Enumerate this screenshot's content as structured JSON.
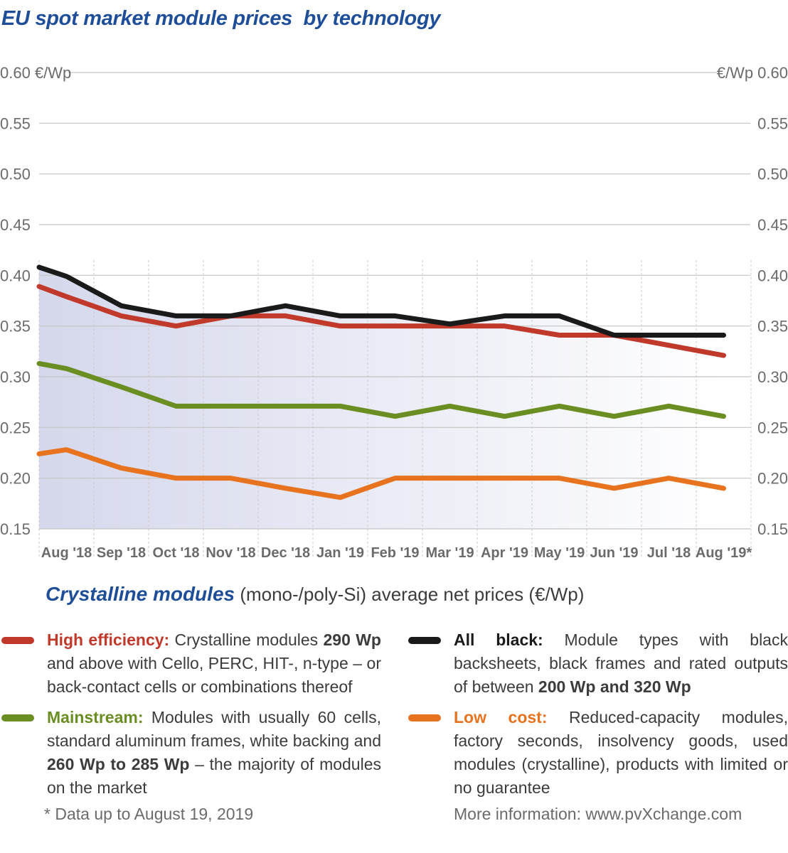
{
  "title": "EU spot market module prices  by technology",
  "chart_data": {
    "type": "line",
    "title": "EU spot market module prices  by technology",
    "ylabel_left": "0.60 €/Wp",
    "ylabel_right": "€/Wp  0.60",
    "ylim": [
      0.15,
      0.6
    ],
    "yticks": [
      "0.60",
      "0.55",
      "0.50",
      "0.45",
      "0.40",
      "0.35",
      "0.30",
      "0.25",
      "0.20",
      "0.15"
    ],
    "categories": [
      "Aug '18",
      "Sep '18",
      "Oct '18",
      "Nov '18",
      "Dec '18",
      "Jan '19",
      "Feb '19",
      "Mar '19",
      "Apr '19",
      "May '19",
      "Jun '19",
      "Jul '18",
      "Aug '19*"
    ],
    "series": [
      {
        "name": "All black",
        "color": "#1a1a1a",
        "points": [
          [
            0,
            0.408
          ],
          [
            0.5,
            0.399
          ],
          [
            1.5,
            0.37
          ],
          [
            2.5,
            0.36
          ],
          [
            3.5,
            0.36
          ],
          [
            4.5,
            0.37
          ],
          [
            5.5,
            0.36
          ],
          [
            6.5,
            0.36
          ],
          [
            7.5,
            0.352
          ],
          [
            8.5,
            0.36
          ],
          [
            9.5,
            0.36
          ],
          [
            10.5,
            0.341
          ],
          [
            11.5,
            0.341
          ],
          [
            12.5,
            0.341
          ]
        ]
      },
      {
        "name": "High efficiency",
        "color": "#c0392b",
        "points": [
          [
            0,
            0.389
          ],
          [
            0.5,
            0.379
          ],
          [
            1.5,
            0.36
          ],
          [
            2.5,
            0.35
          ],
          [
            3.5,
            0.36
          ],
          [
            4.5,
            0.36
          ],
          [
            5.5,
            0.35
          ],
          [
            6.5,
            0.35
          ],
          [
            7.5,
            0.35
          ],
          [
            8.5,
            0.35
          ],
          [
            9.5,
            0.341
          ],
          [
            10.5,
            0.341
          ],
          [
            11.5,
            0.331
          ],
          [
            12.5,
            0.321
          ]
        ]
      },
      {
        "name": "Mainstream",
        "color": "#6b8e23",
        "points": [
          [
            0,
            0.313
          ],
          [
            0.5,
            0.308
          ],
          [
            1.5,
            0.29
          ],
          [
            2.5,
            0.271
          ],
          [
            3.5,
            0.271
          ],
          [
            4.5,
            0.271
          ],
          [
            5.5,
            0.271
          ],
          [
            6.5,
            0.261
          ],
          [
            7.5,
            0.271
          ],
          [
            8.5,
            0.261
          ],
          [
            9.5,
            0.271
          ],
          [
            10.5,
            0.261
          ],
          [
            11.5,
            0.271
          ],
          [
            12.5,
            0.261
          ]
        ]
      },
      {
        "name": "Low cost",
        "color": "#e8731e",
        "points": [
          [
            0,
            0.224
          ],
          [
            0.5,
            0.228
          ],
          [
            1.5,
            0.21
          ],
          [
            2.5,
            0.2
          ],
          [
            3.5,
            0.2
          ],
          [
            4.5,
            0.19
          ],
          [
            5.5,
            0.181
          ],
          [
            6.5,
            0.2
          ],
          [
            7.5,
            0.2
          ],
          [
            8.5,
            0.2
          ],
          [
            9.5,
            0.2
          ],
          [
            10.5,
            0.19
          ],
          [
            11.5,
            0.2
          ],
          [
            12.5,
            0.19
          ]
        ]
      }
    ]
  },
  "subtitle": {
    "bold": "Crystalline modules",
    "rest": " (mono-/poly-Si) average net prices (€/Wp)"
  },
  "legend": {
    "high_efficiency": {
      "name": "High efficiency:",
      "t1": " Crystalline modules ",
      "b1": "290 Wp",
      "t2": " and above with Cello, PERC, HIT-, n-type – or back-contact cells or combinations thereof"
    },
    "mainstream": {
      "name": "Mainstream:",
      "t1": " Modules with usually 60 cells, standard aluminum frames, white backing and ",
      "b1": "260 Wp to 285 Wp",
      "t2": " – the majority of modules on the market"
    },
    "all_black": {
      "name": "All black:",
      "t1": " Module types with black backsheets, black frames and rated outputs of between ",
      "b1": "200 Wp and 320 Wp"
    },
    "low_cost": {
      "name": "Low cost:",
      "t1": " Reduced-capacity modules, factory seconds, insolvency goods, used modules (crystalline), products with limited or no guarantee"
    }
  },
  "footnote": "* Data up to August 19, 2019",
  "more_info": "More information: www.pvXchange.com"
}
